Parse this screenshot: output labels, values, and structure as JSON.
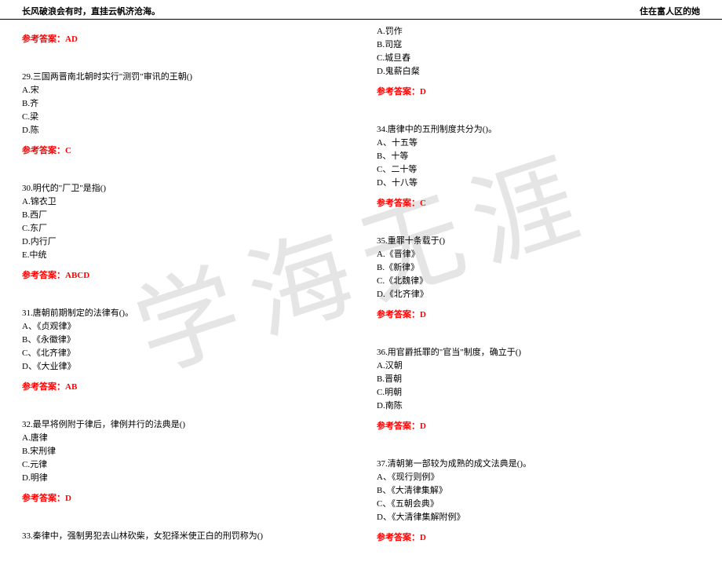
{
  "header": {
    "left": "长风破浪会有时，直挂云帆济沧海。",
    "right": "住在富人区的她"
  },
  "watermark": "学海无涯",
  "colors": {
    "answer": "#ff0000",
    "text": "#000000",
    "watermark": "#e5e5e5",
    "background": "#ffffff",
    "rule": "#000000"
  },
  "left": {
    "ans0": "参考答案：AD",
    "q29": "29.三国两晋南北朝时实行\"测罚\"审讯的王朝()",
    "q29a": "A.宋",
    "q29b": "B.齐",
    "q29c": "C.梁",
    "q29d": "D.陈",
    "ans29": "参考答案：C",
    "q30": "30.明代的\"厂卫\"是指()",
    "q30a": "A.锦衣卫",
    "q30b": "B.西厂",
    "q30c": "C.东厂",
    "q30d": "D.内行厂",
    "q30e": "E.中统",
    "ans30": "参考答案：ABCD",
    "q31": "31.唐朝前期制定的法律有()。",
    "q31a": "A、《贞观律》",
    "q31b": "B、《永徽律》",
    "q31c": "C、《北齐律》",
    "q31d": "D、《大业律》",
    "ans31": "参考答案：AB",
    "q32": "32.最早将例附于律后，律例并行的法典是()",
    "q32a": "A.唐律",
    "q32b": "B.宋刑律",
    "q32c": "C.元律",
    "q32d": "D.明律",
    "ans32": "参考答案：D",
    "q33": "33.秦律中，强制男犯去山林砍柴，女犯择米使正白的刑罚称为()"
  },
  "right": {
    "q33a": "A.罚作",
    "q33b": "B.司寇",
    "q33c": "C.城旦舂",
    "q33d": "D.鬼薪白粲",
    "ans33": "参考答案：D",
    "q34": "34.唐律中的五刑制度共分为()。",
    "q34a": "A、十五等",
    "q34b": "B、十等",
    "q34c": "C、二十等",
    "q34d": "D、十八等",
    "ans34": "参考答案：C",
    "q35": "35.重罪十条载于()",
    "q35a": "A.《晋律》",
    "q35b": "B.《新律》",
    "q35c": "C.《北魏律》",
    "q35d": "D.《北齐律》",
    "ans35": "参考答案：D",
    "q36": "36.用官爵抵罪的\"官当\"制度，确立于()",
    "q36a": "A.汉朝",
    "q36b": "B.晋朝",
    "q36c": "C.明朝",
    "q36d": "D.南陈",
    "ans36": "参考答案：D",
    "q37": "37.清朝第一部较为成熟的成文法典是()。",
    "q37a": "A、《现行则例》",
    "q37b": "B、《大清律集解》",
    "q37c": "C、《五朝会典》",
    "q37d": "D、《大清律集解附例》",
    "ans37": "参考答案：D"
  }
}
